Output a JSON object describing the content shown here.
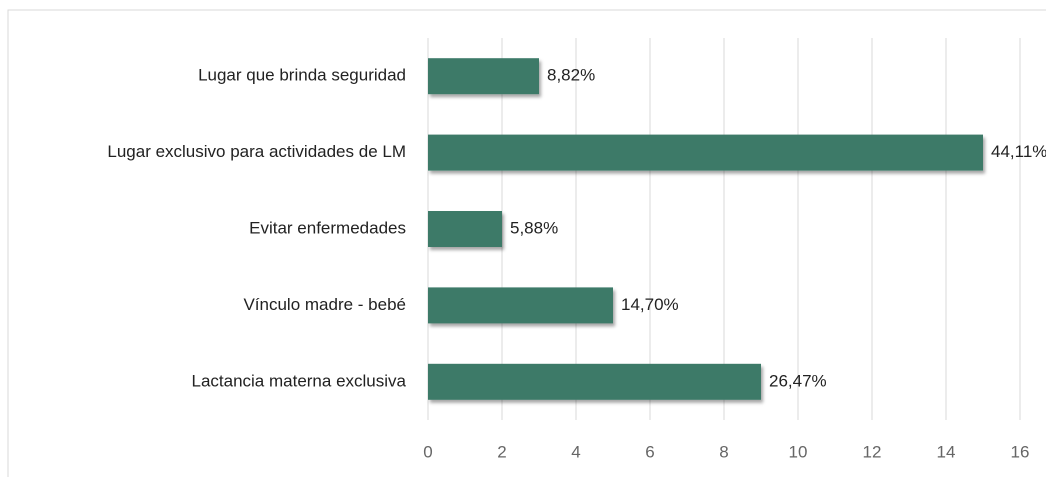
{
  "chart_data": {
    "type": "hbar",
    "categories": [
      "Lugar que brinda seguridad",
      "Lugar exclusivo para actividades de LM",
      "Evitar enfermedades",
      "Vínculo madre - bebé",
      "Lactancia materna exclusiva"
    ],
    "values": [
      3,
      15,
      2,
      5,
      9
    ],
    "value_labels": [
      "8,82%",
      "44,11%",
      "5,88%",
      "14,70%",
      "26,47%"
    ],
    "color": "#3d7a68",
    "xlim": [
      0,
      16
    ],
    "xticks": [
      0,
      2,
      4,
      6,
      8,
      10,
      12,
      14,
      16
    ],
    "grid": true
  }
}
